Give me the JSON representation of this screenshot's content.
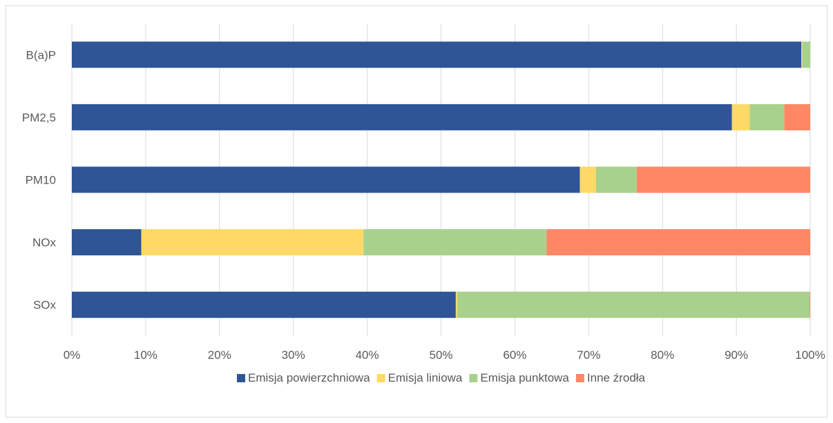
{
  "chart_data": {
    "type": "bar",
    "orientation": "horizontal",
    "stacked": "percent",
    "categories": [
      "B(a)P",
      "PM2,5",
      "PM10",
      "NOx",
      "SOx"
    ],
    "series": [
      {
        "name": "Emisja powierzchniowa",
        "color": "#2f5597",
        "values": [
          98.8,
          89.4,
          68.8,
          9.4,
          52.0
        ]
      },
      {
        "name": "Emisja liniowa",
        "color": "#ffd966",
        "values": [
          0.1,
          2.4,
          2.2,
          30.1,
          0.2
        ]
      },
      {
        "name": "Emisja punktowa",
        "color": "#a9d18e",
        "values": [
          1.1,
          4.7,
          5.5,
          24.8,
          47.7
        ]
      },
      {
        "name": "Inne źrodła",
        "color": "#ff8765",
        "values": [
          0.0,
          3.5,
          23.5,
          35.7,
          0.1
        ]
      }
    ],
    "x_ticks": [
      "0%",
      "10%",
      "20%",
      "30%",
      "40%",
      "50%",
      "60%",
      "70%",
      "80%",
      "90%",
      "100%"
    ],
    "xlim": [
      0,
      100
    ],
    "grid": true,
    "legend": "bottom"
  }
}
